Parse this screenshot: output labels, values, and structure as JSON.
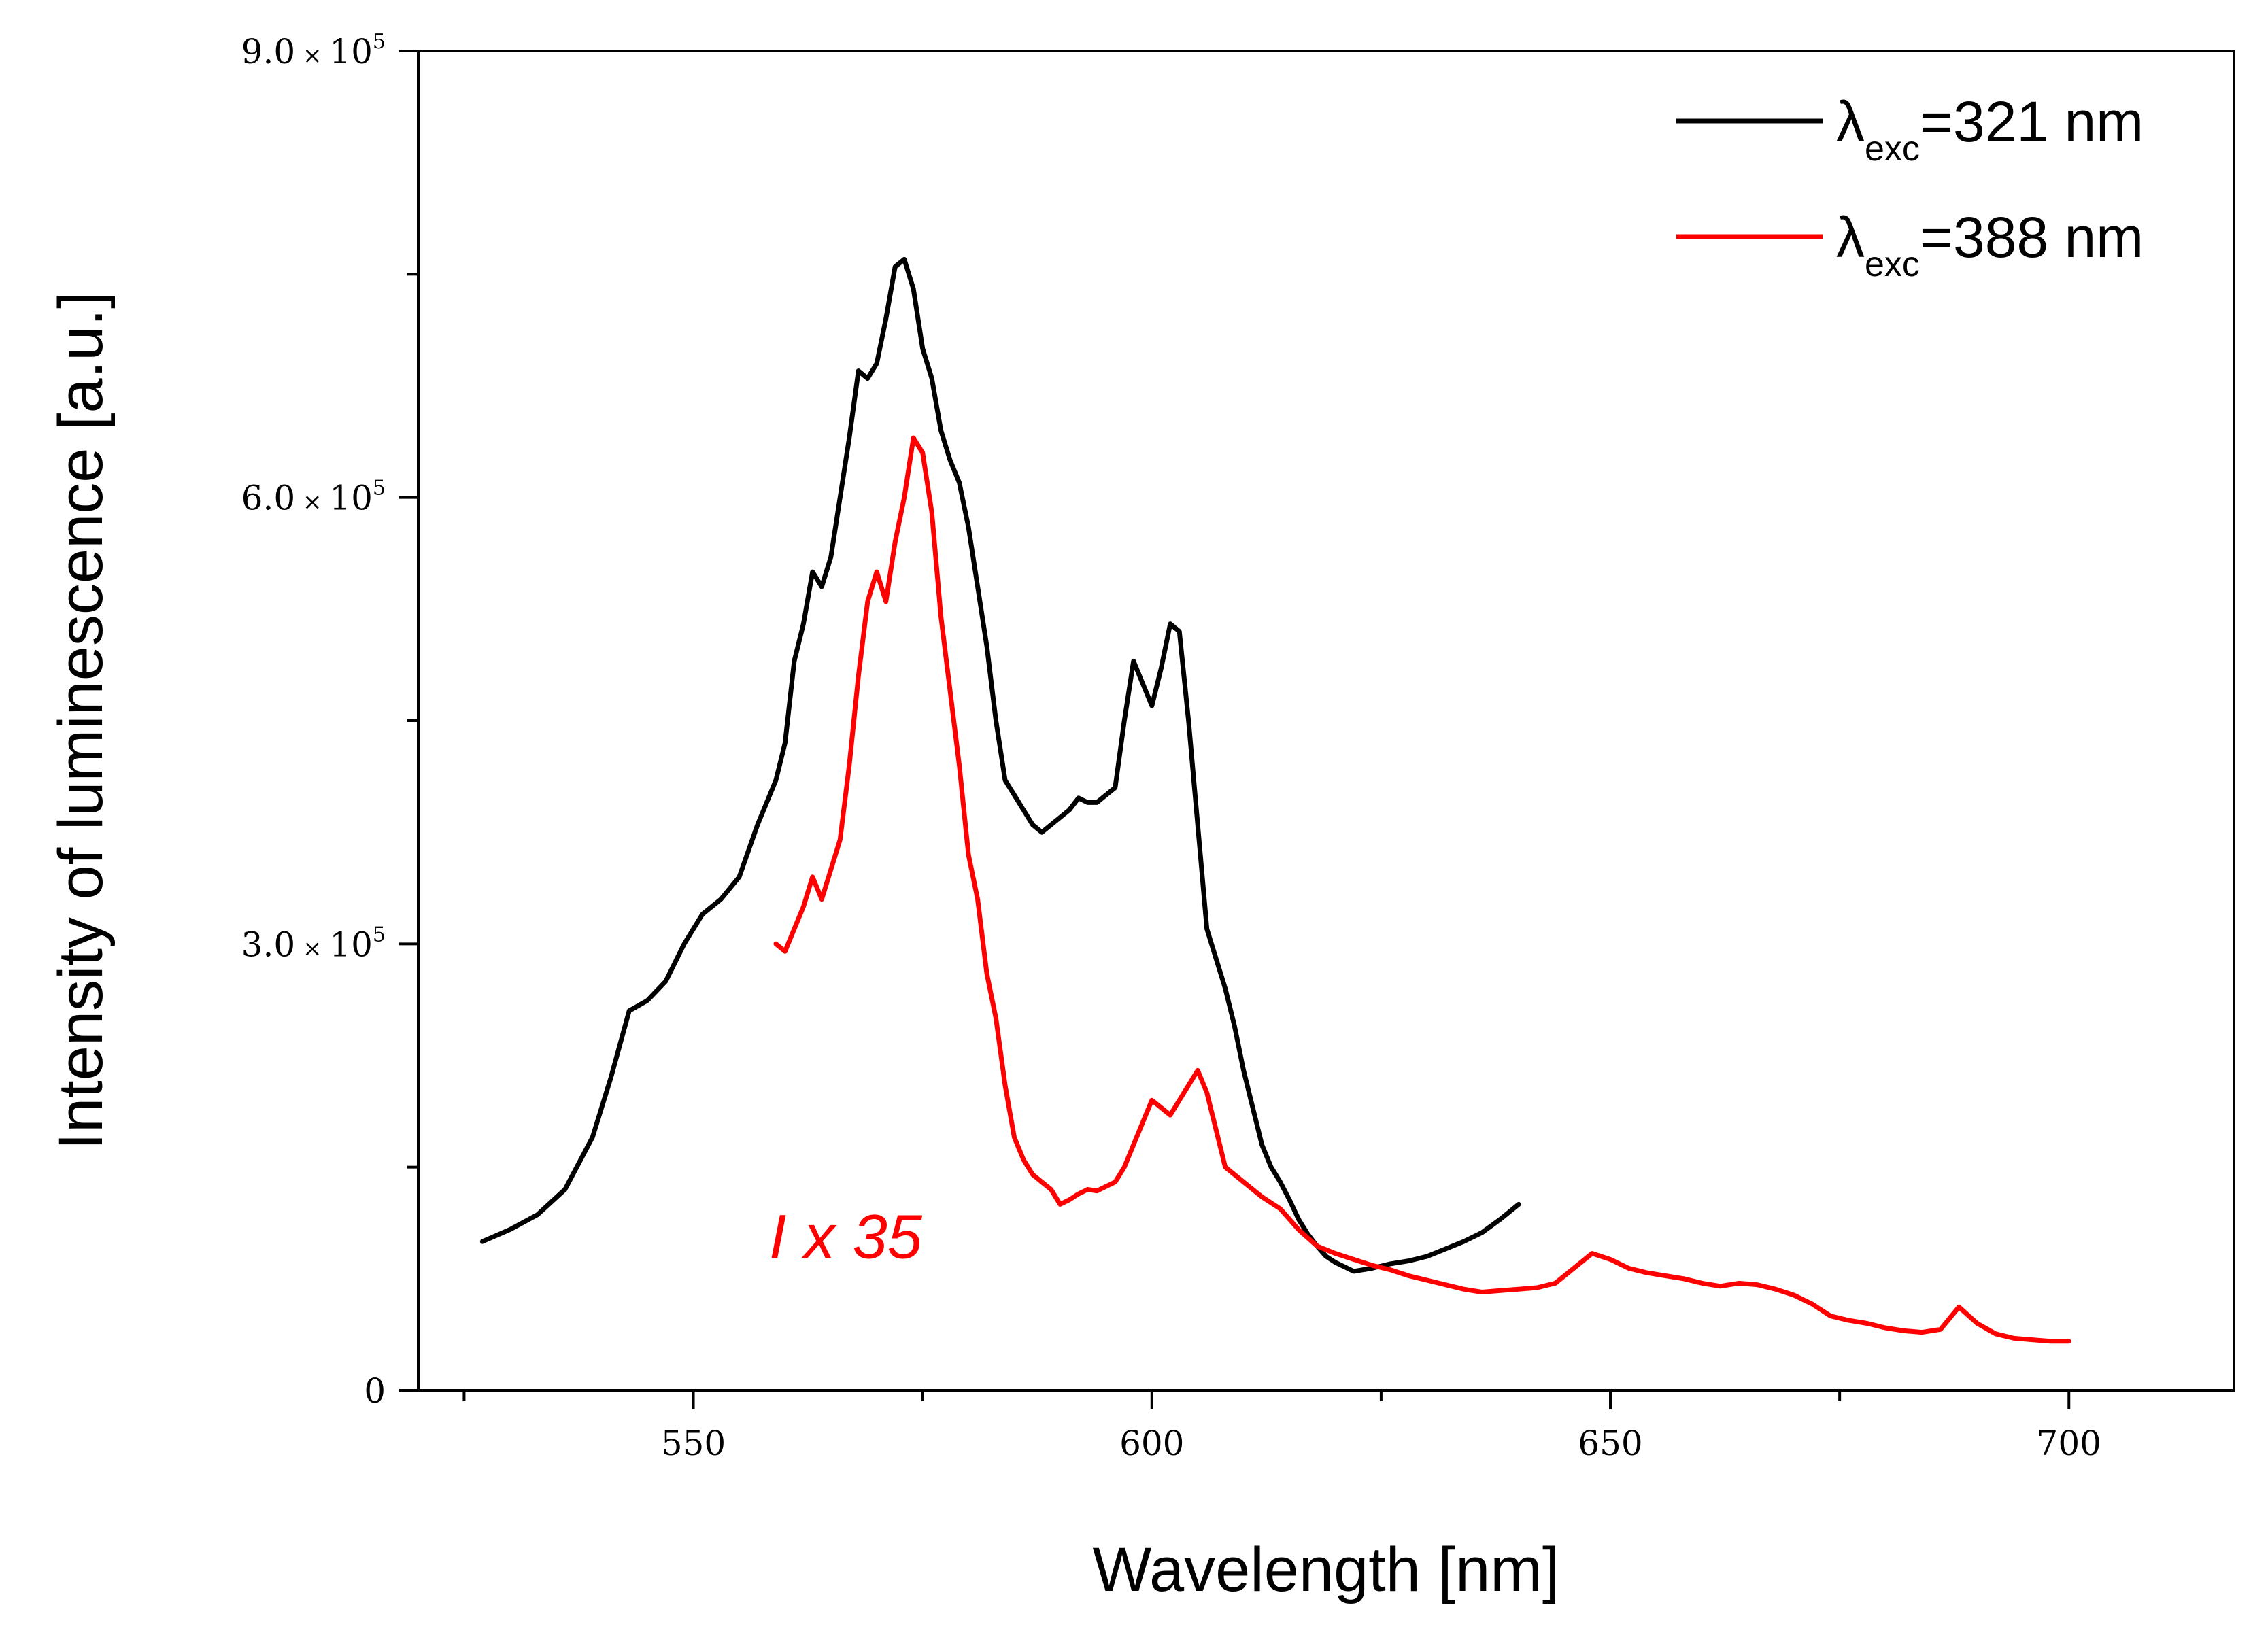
{
  "chart_data": {
    "type": "line",
    "title": "",
    "xlabel": "Wavelength [nm]",
    "ylabel": "Intensity of luminescence [a.u.]",
    "xlim": [
      520,
      718
    ],
    "ylim": [
      0,
      900000
    ],
    "x_ticks": [
      550,
      600,
      650,
      700
    ],
    "x_minor_ticks": [
      525,
      575,
      625,
      675
    ],
    "y_ticks": [
      {
        "value": 0,
        "mantissa": "0",
        "times": "",
        "base": "",
        "exp": ""
      },
      {
        "value": 300000,
        "mantissa": "3.0",
        "times": "×",
        "base": "10",
        "exp": "5"
      },
      {
        "value": 600000,
        "mantissa": "6.0",
        "times": "×",
        "base": "10",
        "exp": "5"
      },
      {
        "value": 900000,
        "mantissa": "9.0",
        "times": "×",
        "base": "10",
        "exp": "5"
      }
    ],
    "legend_position": "top-right",
    "annotation": {
      "text": "I x 35",
      "color": "#ff0000",
      "x": 559,
      "y": 98000
    },
    "series": [
      {
        "name": "λexc=321 nm",
        "legend_symbol": "λ",
        "legend_sub": "exc",
        "legend_rest": "=321 nm",
        "color": "#000000",
        "x": [
          527,
          530,
          533,
          536,
          539,
          541,
          543,
          545,
          547,
          549,
          551,
          553,
          555,
          557,
          559,
          560,
          561,
          562,
          563,
          564,
          565,
          566,
          567,
          568,
          569,
          570,
          571,
          572,
          573,
          574,
          575,
          576,
          577,
          578,
          579,
          580,
          581,
          582,
          583,
          584,
          585,
          586,
          587,
          588,
          589,
          590,
          591,
          592,
          593,
          594,
          595,
          596,
          597,
          598,
          599,
          600,
          601,
          602,
          603,
          604,
          605,
          606,
          607,
          608,
          609,
          610,
          611,
          612,
          613,
          614,
          615,
          616,
          617,
          618,
          619,
          620,
          622,
          624,
          626,
          628,
          630,
          632,
          634,
          636,
          638,
          640
        ],
        "y": [
          100000,
          108000,
          118000,
          135000,
          170000,
          210000,
          255000,
          262000,
          275000,
          300000,
          320000,
          330000,
          345000,
          380000,
          410000,
          435000,
          490000,
          515000,
          550000,
          540000,
          560000,
          600000,
          640000,
          685000,
          680000,
          690000,
          720000,
          755000,
          760000,
          740000,
          700000,
          680000,
          645000,
          625000,
          610000,
          580000,
          540000,
          500000,
          450000,
          410000,
          400000,
          390000,
          380000,
          375000,
          380000,
          385000,
          390000,
          398000,
          395000,
          395000,
          400000,
          405000,
          450000,
          490000,
          475000,
          460000,
          485000,
          515000,
          510000,
          450000,
          380000,
          310000,
          290000,
          270000,
          245000,
          215000,
          190000,
          165000,
          150000,
          140000,
          128000,
          115000,
          105000,
          97000,
          90000,
          86000,
          80000,
          82000,
          85000,
          87000,
          90000,
          95000,
          100000,
          106000,
          115000,
          125000
        ]
      },
      {
        "name": "λexc=388 nm",
        "legend_symbol": "λ",
        "legend_sub": "exc",
        "legend_rest": "=388 nm",
        "color": "#ff0000",
        "x": [
          559,
          560,
          561,
          562,
          563,
          564,
          565,
          566,
          567,
          568,
          569,
          570,
          571,
          572,
          573,
          574,
          575,
          576,
          577,
          578,
          579,
          580,
          581,
          582,
          583,
          584,
          585,
          586,
          587,
          588,
          589,
          590,
          591,
          592,
          593,
          594,
          595,
          596,
          597,
          598,
          599,
          600,
          601,
          602,
          603,
          604,
          605,
          606,
          607,
          608,
          609,
          610,
          612,
          614,
          616,
          618,
          620,
          622,
          624,
          626,
          628,
          630,
          632,
          634,
          636,
          638,
          640,
          642,
          644,
          646,
          648,
          650,
          652,
          654,
          656,
          658,
          660,
          662,
          664,
          666,
          668,
          670,
          672,
          674,
          676,
          678,
          680,
          682,
          684,
          686,
          688,
          690,
          692,
          694,
          696,
          698,
          700
        ],
        "y": [
          300000,
          295000,
          310000,
          325000,
          345000,
          330000,
          350000,
          370000,
          420000,
          480000,
          530000,
          550000,
          530000,
          570000,
          600000,
          640000,
          630000,
          590000,
          520000,
          470000,
          420000,
          360000,
          330000,
          280000,
          250000,
          205000,
          170000,
          155000,
          145000,
          140000,
          135000,
          125000,
          128000,
          132000,
          135000,
          134000,
          137000,
          140000,
          150000,
          165000,
          180000,
          195000,
          190000,
          185000,
          195000,
          205000,
          215000,
          200000,
          175000,
          150000,
          145000,
          140000,
          130000,
          122000,
          108000,
          97000,
          92000,
          88000,
          84000,
          81000,
          77000,
          74000,
          71000,
          68000,
          66000,
          67000,
          68000,
          69000,
          72000,
          82000,
          92000,
          88000,
          82000,
          79000,
          77000,
          75000,
          72000,
          70000,
          72000,
          71000,
          68000,
          64000,
          58000,
          50000,
          47000,
          45000,
          42000,
          40000,
          39000,
          41000,
          56000,
          45000,
          38000,
          35000,
          34000,
          33000,
          33000
        ]
      }
    ]
  }
}
